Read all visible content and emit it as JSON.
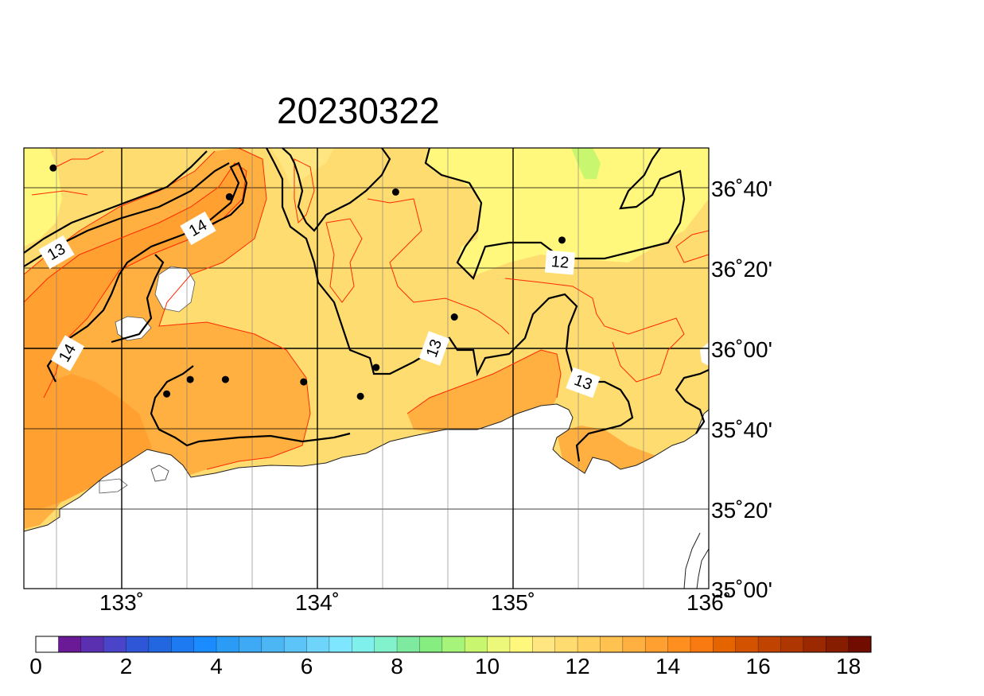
{
  "title": "20230322",
  "map": {
    "lon_range": [
      132.5,
      136.0
    ],
    "lat_range": [
      35.0,
      36.8333
    ],
    "lon_ticks": [
      "133˚",
      "134˚",
      "135˚",
      "136˚"
    ],
    "lat_ticks": [
      "36˚40'",
      "36˚20'",
      "36˚00'",
      "35˚40'",
      "35˚20'",
      "35˚00'"
    ],
    "contour_labels": [
      "13",
      "14",
      "14",
      "12",
      "13",
      "13"
    ],
    "stations": [
      {
        "lon": 132.65,
        "lat": 36.75
      },
      {
        "lon": 133.55,
        "lat": 36.63
      },
      {
        "lon": 134.4,
        "lat": 36.65
      },
      {
        "lon": 135.25,
        "lat": 36.45
      },
      {
        "lon": 134.7,
        "lat": 36.13
      },
      {
        "lon": 134.3,
        "lat": 35.92
      },
      {
        "lon": 133.93,
        "lat": 35.86
      },
      {
        "lon": 133.53,
        "lat": 35.87
      },
      {
        "lon": 133.35,
        "lat": 35.87
      },
      {
        "lon": 133.23,
        "lat": 35.81
      },
      {
        "lon": 134.22,
        "lat": 35.8
      }
    ]
  },
  "colorbar": {
    "tick_labels": [
      "0",
      "2",
      "4",
      "6",
      "8",
      "10",
      "12",
      "14",
      "16",
      "18"
    ],
    "colors": [
      "#ffffff",
      "#6a1a96",
      "#5a2fb0",
      "#4a45c8",
      "#2f56d6",
      "#2266e0",
      "#1e7af0",
      "#1a8cff",
      "#2b9cf5",
      "#3eaaf5",
      "#4cb6f5",
      "#5cc4f8",
      "#6ed4fa",
      "#7ee6ff",
      "#80f0ec",
      "#82f2cc",
      "#7eeaa0",
      "#86ee80",
      "#a6f47a",
      "#c8f66e",
      "#ecf87a",
      "#fff87c",
      "#ffe680",
      "#ffdc70",
      "#ffd060",
      "#ffc250",
      "#ffb040",
      "#ffa030",
      "#ff9020",
      "#f87a10",
      "#e46400",
      "#d25200",
      "#c04400",
      "#ae3600",
      "#9a2800",
      "#861c00",
      "#700c00"
    ]
  }
}
